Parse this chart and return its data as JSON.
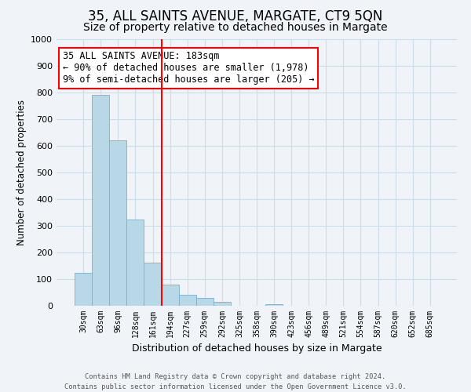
{
  "title": "35, ALL SAINTS AVENUE, MARGATE, CT9 5QN",
  "subtitle": "Size of property relative to detached houses in Margate",
  "xlabel": "Distribution of detached houses by size in Margate",
  "ylabel": "Number of detached properties",
  "bin_labels": [
    "30sqm",
    "63sqm",
    "96sqm",
    "128sqm",
    "161sqm",
    "194sqm",
    "227sqm",
    "259sqm",
    "292sqm",
    "325sqm",
    "358sqm",
    "390sqm",
    "423sqm",
    "456sqm",
    "489sqm",
    "521sqm",
    "554sqm",
    "587sqm",
    "620sqm",
    "652sqm",
    "685sqm"
  ],
  "bar_values": [
    125,
    790,
    620,
    325,
    162,
    78,
    42,
    28,
    15,
    0,
    0,
    5,
    0,
    0,
    0,
    0,
    0,
    0,
    0,
    0,
    0
  ],
  "bar_color": "#b8d8e8",
  "bar_edge_color": "#7ab0cc",
  "vline_color": "red",
  "vline_x_index": 5,
  "annotation_text": "35 ALL SAINTS AVENUE: 183sqm\n← 90% of detached houses are smaller (1,978)\n9% of semi-detached houses are larger (205) →",
  "annotation_box_edge_color": "red",
  "ylim": [
    0,
    1000
  ],
  "yticks": [
    0,
    100,
    200,
    300,
    400,
    500,
    600,
    700,
    800,
    900,
    1000
  ],
  "grid_color": "#ccdde8",
  "footer_line1": "Contains HM Land Registry data © Crown copyright and database right 2024.",
  "footer_line2": "Contains public sector information licensed under the Open Government Licence v3.0.",
  "background_color": "#f0f4f8",
  "title_fontsize": 12,
  "subtitle_fontsize": 10,
  "annotation_fontsize": 8.5,
  "tick_fontsize": 7,
  "ylabel_fontsize": 8.5,
  "xlabel_fontsize": 9
}
